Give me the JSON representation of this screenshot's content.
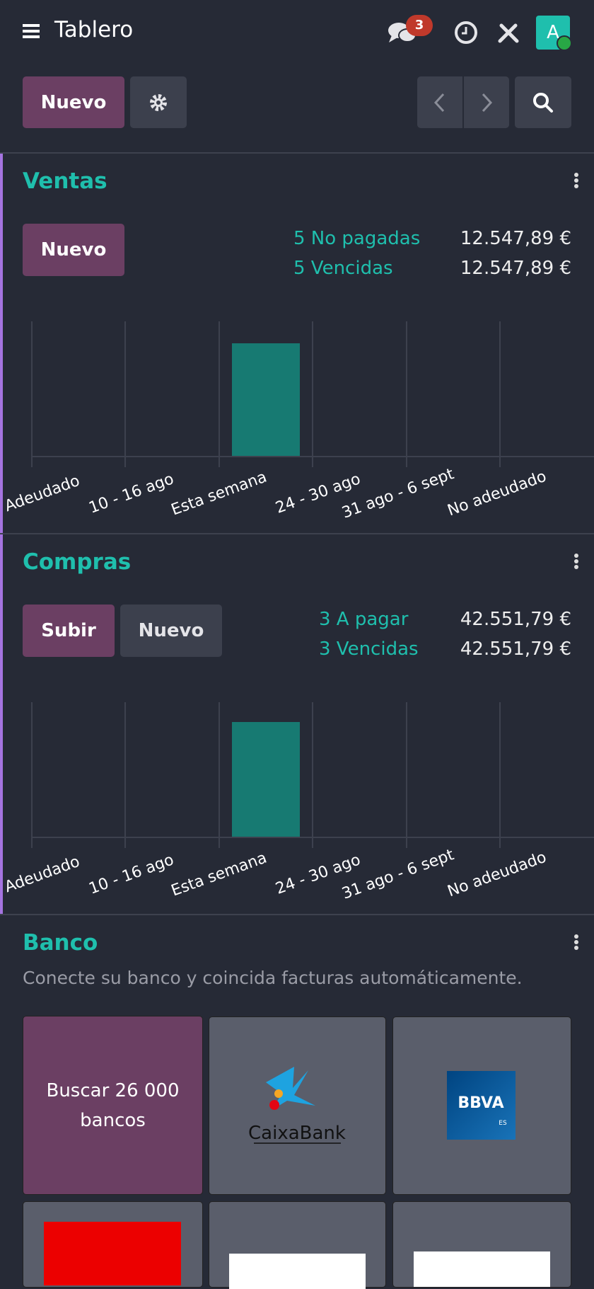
{
  "header": {
    "title": "Tablero",
    "message_count": 3,
    "avatar": "A"
  },
  "toolbar": {
    "new_button": "Nuevo"
  },
  "sections": [
    {
      "title": "Ventas",
      "buttons": [
        "Nuevo"
      ],
      "summary": [
        {
          "label": "5 No pagadas",
          "amount": "12.547,89 €"
        },
        {
          "label": "5 Vencidas",
          "amount": "12.547,89 €"
        }
      ],
      "chart_categories": [
        "Adeudado",
        "10 - 16 ago",
        "Esta semana",
        "24 - 30 ago",
        "31 ago - 6 sept",
        "No adeudado"
      ]
    },
    {
      "title": "Compras",
      "buttons": [
        "Subir",
        "Nuevo"
      ],
      "summary": [
        {
          "label": "3 A pagar",
          "amount": "42.551,79 €"
        },
        {
          "label": "3 Vencidas",
          "amount": "42.551,79 €"
        }
      ],
      "chart_categories": [
        "Adeudado",
        "10 - 16 ago",
        "Esta semana",
        "24 - 30 ago",
        "31 ago - 6 sept",
        "No adeudado"
      ]
    }
  ],
  "bank": {
    "title": "Banco",
    "subtitle": "Conecte su banco y coincida facturas automáticamente.",
    "search_tile": "Buscar 26 000 bancos",
    "banks": [
      "CaixaBank",
      "BBVA"
    ],
    "bbva_region": "ES"
  }
}
